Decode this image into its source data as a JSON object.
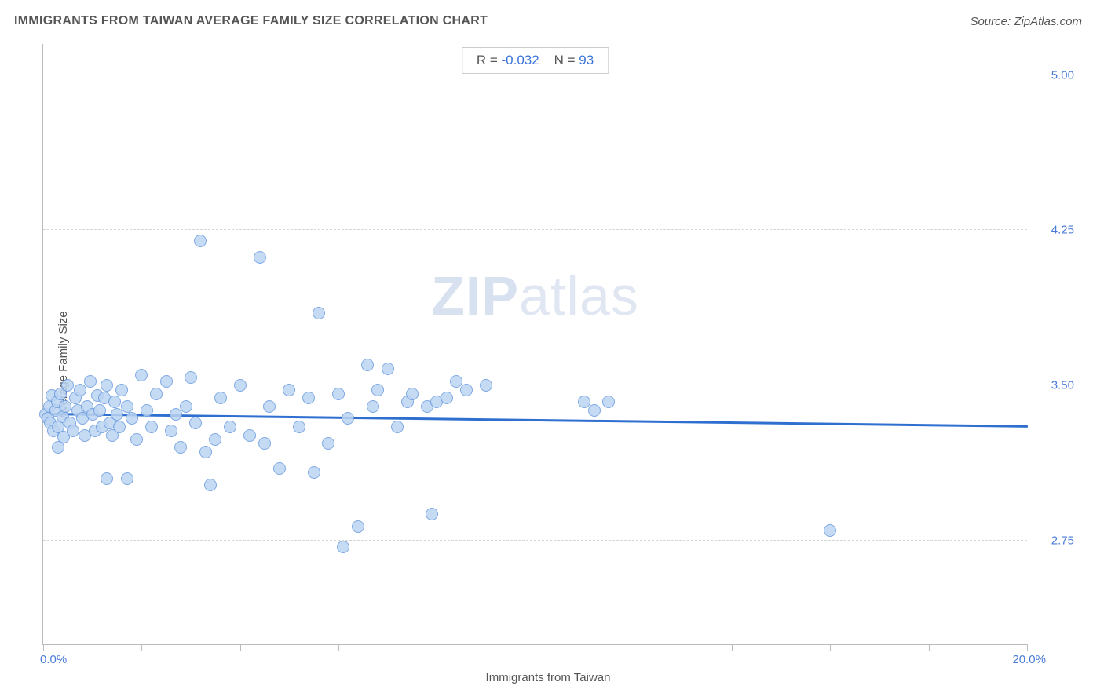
{
  "title": "IMMIGRANTS FROM TAIWAN AVERAGE FAMILY SIZE CORRELATION CHART",
  "source": "Source: ZipAtlas.com",
  "watermark_bold": "ZIP",
  "watermark_light": "atlas",
  "chart": {
    "type": "scatter",
    "xlabel": "Immigrants from Taiwan",
    "ylabel": "Average Family Size",
    "xlim": [
      0.0,
      20.0
    ],
    "ylim": [
      2.25,
      5.15
    ],
    "x_min_label": "0.0%",
    "x_max_label": "20.0%",
    "ytick_values": [
      2.75,
      3.5,
      4.25,
      5.0
    ],
    "ytick_labels": [
      "2.75",
      "3.50",
      "4.25",
      "5.00"
    ],
    "xtick_positions": [
      0,
      2,
      4,
      6,
      8,
      10,
      12,
      14,
      16,
      18,
      20
    ],
    "grid_color": "#d6d6d6",
    "axis_color": "#bbbbbb",
    "background_color": "#ffffff",
    "point_fill": "#bcd4f2",
    "point_stroke": "#6a9be0",
    "point_radius": 8,
    "trend_color": "#2f6fd0",
    "trend_start_y": 3.36,
    "trend_end_y": 3.3,
    "stats": {
      "r_label": "R =",
      "r_value": "-0.032",
      "n_label": "N =",
      "n_value": "93"
    },
    "label_fontsize": 15,
    "tick_fontsize": 15,
    "title_fontsize": 16,
    "points": [
      [
        0.05,
        3.36
      ],
      [
        0.1,
        3.34
      ],
      [
        0.12,
        3.4
      ],
      [
        0.15,
        3.32
      ],
      [
        0.18,
        3.45
      ],
      [
        0.2,
        3.28
      ],
      [
        0.25,
        3.38
      ],
      [
        0.28,
        3.42
      ],
      [
        0.3,
        3.3
      ],
      [
        0.35,
        3.46
      ],
      [
        0.4,
        3.35
      ],
      [
        0.42,
        3.25
      ],
      [
        0.45,
        3.4
      ],
      [
        0.5,
        3.5
      ],
      [
        0.55,
        3.32
      ],
      [
        0.6,
        3.28
      ],
      [
        0.65,
        3.44
      ],
      [
        0.7,
        3.38
      ],
      [
        0.75,
        3.48
      ],
      [
        0.8,
        3.34
      ],
      [
        0.85,
        3.26
      ],
      [
        0.9,
        3.4
      ],
      [
        0.95,
        3.52
      ],
      [
        1.0,
        3.36
      ],
      [
        1.05,
        3.28
      ],
      [
        1.1,
        3.45
      ],
      [
        1.15,
        3.38
      ],
      [
        1.2,
        3.3
      ],
      [
        1.25,
        3.44
      ],
      [
        1.3,
        3.5
      ],
      [
        1.35,
        3.32
      ],
      [
        1.4,
        3.26
      ],
      [
        1.45,
        3.42
      ],
      [
        1.5,
        3.36
      ],
      [
        1.55,
        3.3
      ],
      [
        1.6,
        3.48
      ],
      [
        1.3,
        3.05
      ],
      [
        1.7,
        3.4
      ],
      [
        1.8,
        3.34
      ],
      [
        1.9,
        3.24
      ],
      [
        2.0,
        3.55
      ],
      [
        2.1,
        3.38
      ],
      [
        2.2,
        3.3
      ],
      [
        2.3,
        3.46
      ],
      [
        2.5,
        3.52
      ],
      [
        2.6,
        3.28
      ],
      [
        2.7,
        3.36
      ],
      [
        2.8,
        3.2
      ],
      [
        2.9,
        3.4
      ],
      [
        3.0,
        3.54
      ],
      [
        3.1,
        3.32
      ],
      [
        3.2,
        4.2
      ],
      [
        3.3,
        3.18
      ],
      [
        3.4,
        3.02
      ],
      [
        3.5,
        3.24
      ],
      [
        3.6,
        3.44
      ],
      [
        3.8,
        3.3
      ],
      [
        4.0,
        3.5
      ],
      [
        4.2,
        3.26
      ],
      [
        4.4,
        4.12
      ],
      [
        4.5,
        3.22
      ],
      [
        4.6,
        3.4
      ],
      [
        4.8,
        3.1
      ],
      [
        5.0,
        3.48
      ],
      [
        5.2,
        3.3
      ],
      [
        5.4,
        3.44
      ],
      [
        5.5,
        3.08
      ],
      [
        5.6,
        3.85
      ],
      [
        5.8,
        3.22
      ],
      [
        6.0,
        3.46
      ],
      [
        6.1,
        2.72
      ],
      [
        6.2,
        3.34
      ],
      [
        6.4,
        2.82
      ],
      [
        6.6,
        3.6
      ],
      [
        6.7,
        3.4
      ],
      [
        6.8,
        3.48
      ],
      [
        7.0,
        3.58
      ],
      [
        7.2,
        3.3
      ],
      [
        7.4,
        3.42
      ],
      [
        7.5,
        3.46
      ],
      [
        7.8,
        3.4
      ],
      [
        7.9,
        2.88
      ],
      [
        8.0,
        3.42
      ],
      [
        8.2,
        3.44
      ],
      [
        8.4,
        3.52
      ],
      [
        8.6,
        3.48
      ],
      [
        9.0,
        3.5
      ],
      [
        11.0,
        3.42
      ],
      [
        11.2,
        3.38
      ],
      [
        11.5,
        3.42
      ],
      [
        16.0,
        2.8
      ],
      [
        0.3,
        3.2
      ],
      [
        1.7,
        3.05
      ]
    ]
  }
}
